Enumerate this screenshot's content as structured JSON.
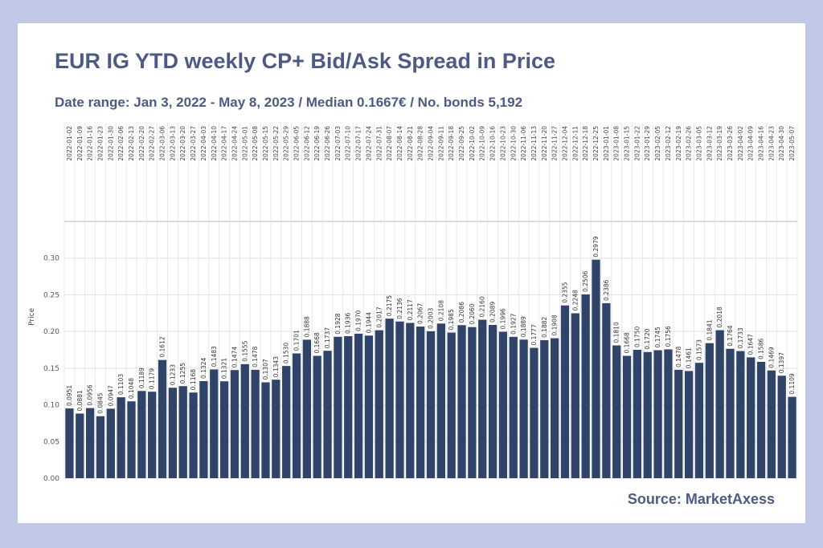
{
  "header": {
    "title": "EUR IG YTD weekly CP+ Bid/Ask Spread in Price",
    "subtitle": "Date range: Jan 3, 2022 - May 8, 2023 / Median 0.1667€ / No. bonds 5,192"
  },
  "footer": {
    "source": "Source: MarketAxess"
  },
  "colors": {
    "bar": "#2f4468",
    "background": "#c0c8e6",
    "title": "#4d5a84"
  },
  "chart_data": {
    "type": "bar",
    "ylabel": "Price",
    "ylim": [
      0,
      0.35
    ],
    "yticks": [
      "0.00",
      "0.05",
      "0.10",
      "0.15",
      "0.20",
      "0.25",
      "0.30"
    ],
    "grid": true,
    "categories": [
      "2022-01-02",
      "2022-01-09",
      "2022-01-16",
      "2022-01-23",
      "2022-01-30",
      "2022-02-06",
      "2022-02-13",
      "2022-02-20",
      "2022-02-27",
      "2022-03-06",
      "2022-03-13",
      "2022-03-20",
      "2022-03-27",
      "2022-04-03",
      "2022-04-10",
      "2022-04-17",
      "2022-04-24",
      "2022-05-01",
      "2022-05-08",
      "2022-05-15",
      "2022-05-22",
      "2022-05-29",
      "2022-06-05",
      "2022-06-12",
      "2022-06-19",
      "2022-06-26",
      "2022-07-03",
      "2022-07-10",
      "2022-07-17",
      "2022-07-24",
      "2022-07-31",
      "2022-08-07",
      "2022-08-14",
      "2022-08-21",
      "2022-08-28",
      "2022-09-04",
      "2022-09-11",
      "2022-09-18",
      "2022-09-25",
      "2022-10-02",
      "2022-10-09",
      "2022-10-16",
      "2022-10-23",
      "2022-10-30",
      "2022-11-06",
      "2022-11-13",
      "2022-11-20",
      "2022-11-27",
      "2022-12-04",
      "2022-12-11",
      "2022-12-18",
      "2022-12-25",
      "2023-01-01",
      "2023-01-08",
      "2023-01-15",
      "2023-01-22",
      "2023-01-29",
      "2023-02-05",
      "2023-02-12",
      "2023-02-19",
      "2023-02-26",
      "2023-03-05",
      "2023-03-12",
      "2023-03-19",
      "2023-03-26",
      "2023-04-02",
      "2023-04-09",
      "2023-04-16",
      "2023-04-23",
      "2023-04-30",
      "2023-05-07"
    ],
    "values": [
      0.0951,
      0.0881,
      0.0956,
      0.0845,
      0.0947,
      0.1103,
      0.1048,
      0.1189,
      0.1179,
      0.1612,
      0.1233,
      0.1255,
      0.1168,
      0.1324,
      0.1483,
      0.1321,
      0.1474,
      0.1555,
      0.1478,
      0.1307,
      0.1343,
      0.153,
      0.1701,
      0.1888,
      0.1668,
      0.1737,
      0.1928,
      0.1936,
      0.197,
      0.1944,
      0.2017,
      0.2175,
      0.2136,
      0.2117,
      0.2067,
      0.2003,
      0.2108,
      0.1985,
      0.2086,
      0.206,
      0.216,
      0.2089,
      0.1996,
      0.1927,
      0.1889,
      0.1777,
      0.1882,
      0.1908,
      0.2355,
      0.2248,
      0.2506,
      0.2979,
      0.2386,
      0.181,
      0.1668,
      0.175,
      0.172,
      0.1745,
      0.1756,
      0.1478,
      0.1461,
      0.1573,
      0.1841,
      0.2018,
      0.1764,
      0.1733,
      0.1647,
      0.1586,
      0.1469,
      0.1397,
      0.1109
    ],
    "data_labels": [
      "0.0951",
      "0.0881",
      "0.0956",
      "0.0845",
      "0.0947",
      "0.1103",
      "0.1048",
      "0.1189",
      "0.1179",
      "0.1612",
      "0.1233",
      "0.1255",
      "0.1168",
      "0.1324",
      "0.1483",
      "0.1321",
      "0.1474",
      "0.1555",
      "0.1478",
      "0.1307",
      "0.1343",
      "0.1530",
      "0.1701",
      "0.1888",
      "0.1668",
      "0.1737",
      "0.1928",
      "0.1936",
      "0.1970",
      "0.1944",
      "0.2017",
      "0.2175",
      "0.2136",
      "0.2117",
      "0.2067",
      "0.2003",
      "0.2108",
      "0.1985",
      "0.2086",
      "0.2060",
      "0.2160",
      "0.2089",
      "0.1996",
      "0.1927",
      "0.1889",
      "0.1777",
      "0.1882",
      "0.1908",
      "0.2355",
      "0.2248",
      "0.2506",
      "0.2979",
      "0.2386",
      "0.1810",
      "0.1668",
      "0.1750",
      "0.1720",
      "0.1745",
      "0.1756",
      "0.1478",
      "0.1461",
      "0.1573",
      "0.1841",
      "0.2018",
      "0.1764",
      "0.1733",
      "0.1647",
      "0.1586",
      "0.1469",
      "0.1397",
      "0.1109"
    ]
  }
}
